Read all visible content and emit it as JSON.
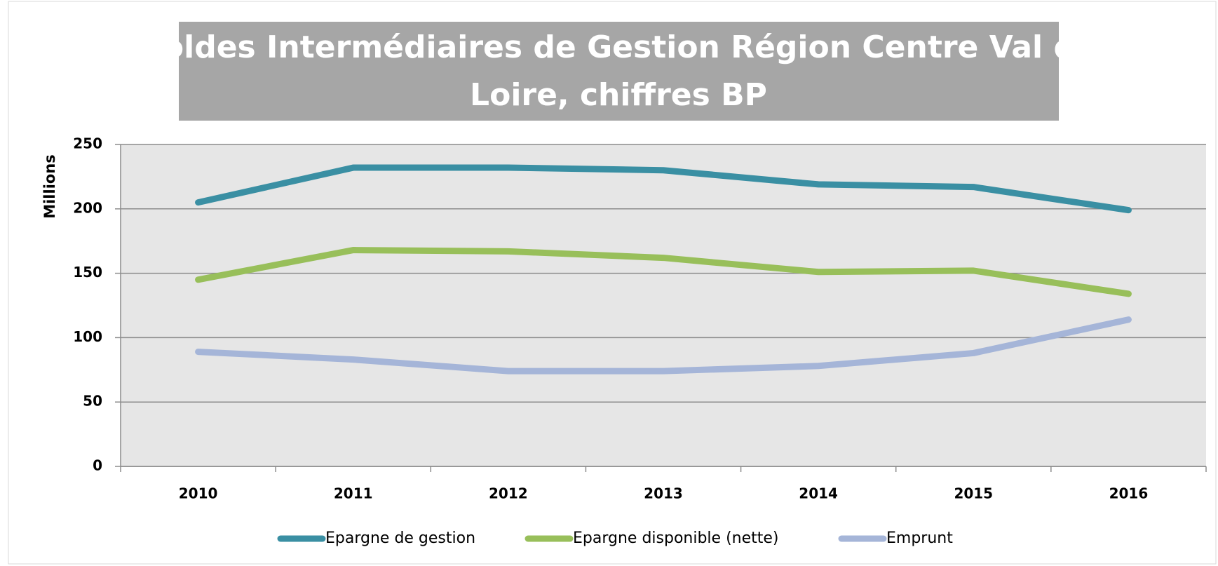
{
  "chart_data": {
    "type": "line",
    "title": "Soldes Intermédiaires de Gestion Région Centre Val de Loire, chiffres BP",
    "y_label": "Millions",
    "categories": [
      "2010",
      "2011",
      "2012",
      "2013",
      "2014",
      "2015",
      "2016"
    ],
    "series": [
      {
        "name": "Epargne de gestion",
        "color": "#3a8fa3",
        "values": [
          205,
          232,
          232,
          230,
          219,
          217,
          199
        ]
      },
      {
        "name": "Epargne disponible (nette)",
        "color": "#98bf5a",
        "values": [
          145,
          168,
          167,
          162,
          151,
          152,
          134
        ]
      },
      {
        "name": "Emprunt",
        "color": "#a5b5d8",
        "values": [
          89,
          83,
          74,
          74,
          78,
          88,
          114
        ]
      }
    ],
    "ylim": [
      0,
      250
    ],
    "yticks": [
      0,
      50,
      100,
      150,
      200,
      250
    ],
    "grid": true,
    "legend": "bottom"
  }
}
